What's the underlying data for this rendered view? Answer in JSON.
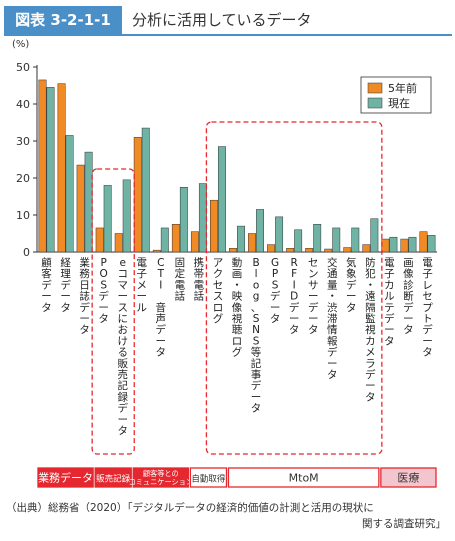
{
  "header": {
    "figure_number": "図表 3-2-1-1",
    "title": "分析に活用しているデータ"
  },
  "colors": {
    "accent": "#4a8fc7",
    "series_prev": "#f08a24",
    "series_now": "#6fb3a4",
    "category_red": "#e5282f",
    "category_pink": "#f3c6cf",
    "highlight_box": "#e5282f"
  },
  "chart_data": {
    "type": "bar",
    "ylabel": "(%)",
    "ylim": [
      0,
      50
    ],
    "yticks": [
      0,
      10,
      20,
      30,
      40,
      50
    ],
    "categories": [
      "顧客データ",
      "経理データ",
      "業務日誌データ",
      "POSデータ",
      "eコマースにおける販売記録データ",
      "電子メール",
      "CTI 音声データ",
      "固定電話",
      "携帯電話",
      "アクセスログ",
      "動画・映像視聴ログ",
      "Blog、SNS等記事データ",
      "GPSデータ",
      "RFIDデータ",
      "センサーデータ",
      "交通量・渋滞情報データ",
      "気象データ",
      "防犯・遠隔監視カメラデータ",
      "電子カルテデータ",
      "画像診断データ",
      "電子レセプトデータ"
    ],
    "series": [
      {
        "name": "5年前",
        "values": [
          46.5,
          45.5,
          23.5,
          6.5,
          5.0,
          31.0,
          0.5,
          7.5,
          5.5,
          14.0,
          1.0,
          5.0,
          2.0,
          1.0,
          1.0,
          0.8,
          1.2,
          2.0,
          3.5,
          3.5,
          5.5
        ]
      },
      {
        "name": "現在",
        "values": [
          44.5,
          31.5,
          27.0,
          18.0,
          19.5,
          33.5,
          6.5,
          17.5,
          18.5,
          28.5,
          7.0,
          11.5,
          9.5,
          6.0,
          7.5,
          6.5,
          6.5,
          9.0,
          4.0,
          4.0,
          4.5
        ]
      }
    ],
    "legend": {
      "position": "top-right",
      "items": [
        "5年前",
        "現在"
      ]
    },
    "groups": [
      {
        "label": "業務データ",
        "style": "red",
        "from": 0,
        "to": 2
      },
      {
        "label": "販売記録",
        "style": "red",
        "from": 3,
        "to": 4
      },
      {
        "label": "顧客等との\nコミュニケーション",
        "style": "red",
        "from": 5,
        "to": 7
      },
      {
        "label": "自動取得",
        "style": "red-outline",
        "from": 8,
        "to": 9
      },
      {
        "label": "MtoM",
        "style": "red-outline",
        "from": 10,
        "to": 17
      },
      {
        "label": "医療",
        "style": "pink",
        "from": 18,
        "to": 20
      }
    ],
    "highlight_boxes": [
      {
        "from": 3,
        "to": 4
      },
      {
        "from": 9,
        "to": 17
      }
    ]
  },
  "source": {
    "line1": "（出典）総務省（2020）「デジタルデータの経済的価値の計測と活用の現状に",
    "line2": "関する調査研究」"
  }
}
